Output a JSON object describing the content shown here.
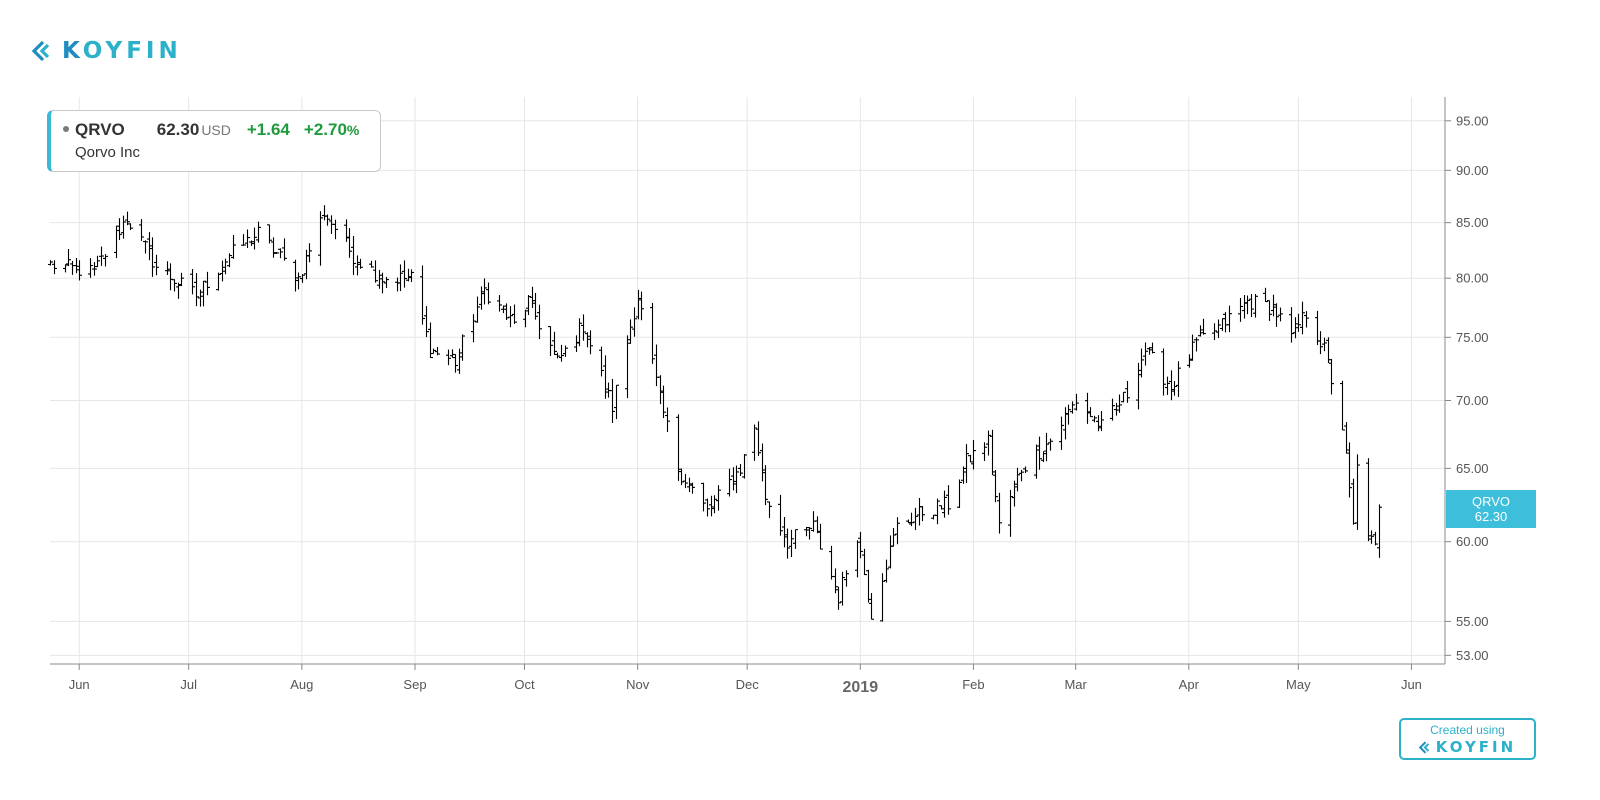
{
  "brand": {
    "logo_part1": "K",
    "logo_part2": "OY",
    "logo_part3": "FIN"
  },
  "quote": {
    "ticker": "QRVO",
    "price": "62.30",
    "currency": "USD",
    "change": "+1.64",
    "change_pct": "+2.70",
    "pct_sign": "%",
    "company": "Qorvo Inc"
  },
  "price_tag": {
    "ticker": "QRVO",
    "price": "62.30"
  },
  "footer": {
    "created_using": "Created using",
    "brand": "KOYFIN"
  },
  "colors": {
    "accent": "#3bbad5",
    "brand_blue": "#1f8dbf",
    "positive": "#1f9a3c",
    "bars": "#000000",
    "grid": "#e6e6e6"
  },
  "chart_data": {
    "type": "ohlc",
    "symbol": "QRVO",
    "y_scale": "log",
    "ylim": [
      52.5,
      97.5
    ],
    "y_ticks": [
      53,
      55,
      60,
      65,
      70,
      75,
      80,
      85,
      90,
      95
    ],
    "y_tick_labels": [
      "53.00",
      "55.00",
      "60.00",
      "65.00",
      "70.00",
      "75.00",
      "80.00",
      "85.00",
      "90.00",
      "95.00"
    ],
    "x_ticks": [
      "2018-06-01",
      "2018-07-01",
      "2018-08-01",
      "2018-09-01",
      "2018-10-01",
      "2018-11-01",
      "2018-12-01",
      "2019-01-01",
      "2019-02-01",
      "2019-03-01",
      "2019-04-01",
      "2019-05-01",
      "2019-06-01"
    ],
    "x_tick_labels": [
      "Jun",
      "Jul",
      "Aug",
      "Sep",
      "Oct",
      "Nov",
      "Dec",
      "2019",
      "Feb",
      "Mar",
      "Apr",
      "May",
      "Jun"
    ],
    "xlim": [
      "2018-05-24",
      "2019-06-01"
    ],
    "grid": true,
    "last_price": 62.3,
    "close_anchors": [
      [
        "2018-05-24",
        81.2
      ],
      [
        "2018-06-05",
        80.5
      ],
      [
        "2018-06-14",
        85.5
      ],
      [
        "2018-06-22",
        81.0
      ],
      [
        "2018-07-03",
        78.5
      ],
      [
        "2018-07-12",
        82.0
      ],
      [
        "2018-07-20",
        84.0
      ],
      [
        "2018-07-31",
        80.0
      ],
      [
        "2018-08-07",
        86.0
      ],
      [
        "2018-08-15",
        82.0
      ],
      [
        "2018-08-23",
        80.0
      ],
      [
        "2018-08-31",
        80.0
      ],
      [
        "2018-09-05",
        74.0
      ],
      [
        "2018-09-12",
        73.0
      ],
      [
        "2018-09-20",
        79.0
      ],
      [
        "2018-09-28",
        76.0
      ],
      [
        "2018-10-02",
        78.0
      ],
      [
        "2018-10-10",
        73.0
      ],
      [
        "2018-10-17",
        76.0
      ],
      [
        "2018-10-25",
        69.5
      ],
      [
        "2018-11-01",
        78.5
      ],
      [
        "2018-11-07",
        70.0
      ],
      [
        "2018-11-12",
        65.0
      ],
      [
        "2018-11-20",
        62.0
      ],
      [
        "2018-11-29",
        65.0
      ],
      [
        "2018-12-03",
        68.0
      ],
      [
        "2018-12-06",
        63.0
      ],
      [
        "2018-12-12",
        60.0
      ],
      [
        "2018-12-19",
        61.0
      ],
      [
        "2018-12-26",
        56.5
      ],
      [
        "2018-12-31",
        60.5
      ],
      [
        "2019-01-04",
        55.5
      ],
      [
        "2019-01-11",
        61.0
      ],
      [
        "2019-01-18",
        62.0
      ],
      [
        "2019-01-25",
        62.5
      ],
      [
        "2019-01-30",
        65.5
      ],
      [
        "2019-02-05",
        67.0
      ],
      [
        "2019-02-08",
        61.0
      ],
      [
        "2019-02-14",
        65.0
      ],
      [
        "2019-02-22",
        67.0
      ],
      [
        "2019-03-01",
        70.0
      ],
      [
        "2019-03-08",
        68.0
      ],
      [
        "2019-03-15",
        70.5
      ],
      [
        "2019-03-20",
        74.0
      ],
      [
        "2019-03-27",
        71.0
      ],
      [
        "2019-04-03",
        74.5
      ],
      [
        "2019-04-10",
        76.0
      ],
      [
        "2019-04-17",
        78.0
      ],
      [
        "2019-04-24",
        77.5
      ],
      [
        "2019-04-29",
        75.0
      ],
      [
        "2019-05-03",
        77.0
      ],
      [
        "2019-05-08",
        74.0
      ],
      [
        "2019-05-13",
        68.0
      ],
      [
        "2019-05-16",
        61.0
      ],
      [
        "2019-05-17",
        65.0
      ],
      [
        "2019-05-20",
        60.5
      ],
      [
        "2019-05-22",
        59.5
      ],
      [
        "2019-05-23",
        62.3
      ]
    ]
  }
}
